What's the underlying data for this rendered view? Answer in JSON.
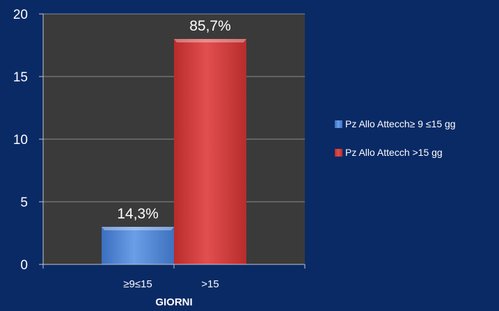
{
  "colors": {
    "background": "#0a2a66",
    "plot_area": "#3a3a3a",
    "grid": "#8c8c8c",
    "axis": "#c8c8c8",
    "text": "#ffffff",
    "series_blue": "#4f86d4",
    "series_red": "#d23b3b"
  },
  "chart_data": {
    "type": "bar",
    "title": "",
    "xlabel": "GIORNI",
    "ylabel": "",
    "ylim": [
      0,
      20
    ],
    "yticks": [
      0,
      5,
      10,
      15,
      20
    ],
    "grid": true,
    "legend_position": "right",
    "categories": [
      "≥9≤15",
      ">15"
    ],
    "series": [
      {
        "name": "Pz Allo Attecch≥ 9 ≤15 gg",
        "color": "#4f86d4",
        "values": [
          3,
          null
        ],
        "data_labels": [
          "14,3%",
          null
        ]
      },
      {
        "name": "Pz Allo Attecch >15 gg",
        "color": "#d23b3b",
        "values": [
          null,
          18
        ],
        "data_labels": [
          null,
          "85,7%"
        ]
      }
    ]
  }
}
